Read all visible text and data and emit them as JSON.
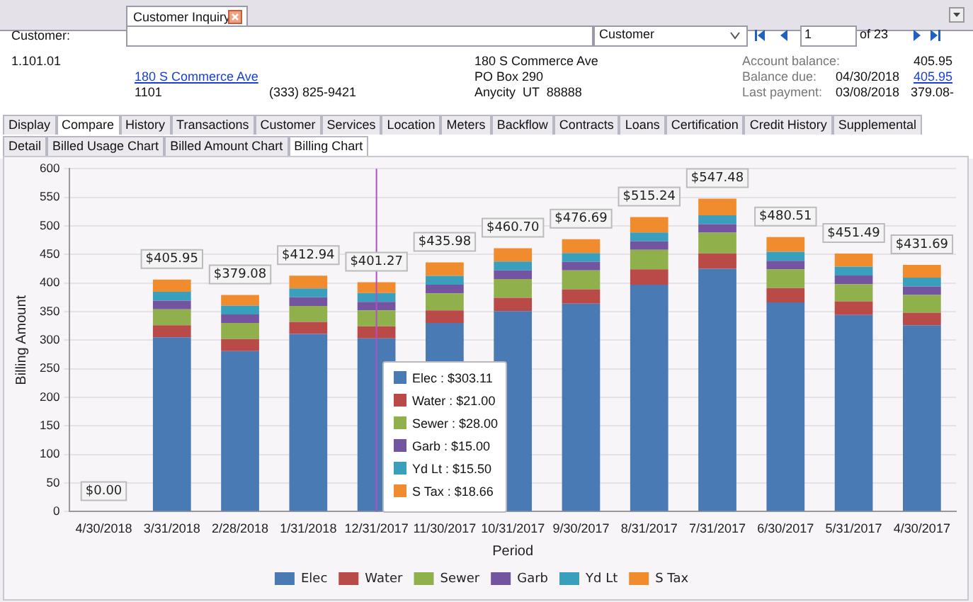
{
  "chart_data": {
    "type": "bar",
    "stacked": true,
    "xlabel": "Period",
    "ylabel": "Billing Amount",
    "categories": [
      "4/30/2018",
      "3/31/2018",
      "2/28/2018",
      "1/31/2018",
      "12/31/2017",
      "11/30/2017",
      "10/31/2017",
      "9/30/2017",
      "8/31/2017",
      "7/31/2017",
      "6/30/2017",
      "5/31/2017",
      "4/30/2017"
    ],
    "series": [
      {
        "name": "Elec",
        "color": "#4a7ab4",
        "values": [
          0,
          305,
          281,
          311,
          303.11,
          330,
          351,
          364,
          397,
          425,
          366,
          344,
          326
        ]
      },
      {
        "name": "Water",
        "color": "#b94a48",
        "values": [
          0,
          21,
          21,
          21,
          21.0,
          22,
          23,
          25,
          27,
          27,
          25,
          24,
          22
        ]
      },
      {
        "name": "Sewer",
        "color": "#8fb04a",
        "values": [
          0,
          28,
          28,
          28,
          28.0,
          30,
          33,
          33,
          34,
          36,
          33,
          30,
          31
        ]
      },
      {
        "name": "Garb",
        "color": "#7354a0",
        "values": [
          0,
          15,
          15,
          15,
          15.0,
          15,
          15,
          15,
          15,
          15,
          15,
          15,
          15
        ]
      },
      {
        "name": "Yd Lt",
        "color": "#3a9fbd",
        "values": [
          0,
          15.5,
          15.5,
          15.5,
          15.5,
          15.5,
          15.5,
          15.5,
          15.5,
          15.5,
          15.5,
          15.5,
          15.5
        ]
      },
      {
        "name": "S Tax",
        "color": "#f08c2e",
        "values": [
          0,
          21.45,
          18.58,
          22.44,
          18.66,
          23.48,
          23.2,
          24.19,
          26.74,
          28.98,
          26.01,
          22.99,
          22.19
        ]
      }
    ],
    "totals": [
      "$0.00",
      "$405.95",
      "$379.08",
      "$412.94",
      "$401.27",
      "$435.98",
      "$460.70",
      "$476.69",
      "$515.24",
      "$547.48",
      "$480.51",
      "$451.49",
      "$431.69"
    ],
    "ylim": [
      0,
      600
    ],
    "yticks": [
      0,
      50,
      100,
      150,
      200,
      250,
      300,
      350,
      400,
      450,
      500,
      550,
      600
    ],
    "grid": "y",
    "legend": "bottom",
    "ref_lines": [
      {
        "axis": "x",
        "value": "12/31/2017",
        "color": "#b050c8"
      }
    ],
    "annotations": [
      "Customer Inquiry",
      "Customer:",
      "Customer",
      "1",
      "of 23",
      "1.101.01",
      "180 S Commerce Ave",
      "1101",
      "(333) 825-9421",
      "180 S Commerce Ave",
      "PO Box 290",
      "Anycity  UT  88888",
      "Account balance:",
      "405.95",
      "Balance due:",
      "04/30/2018",
      "405.95",
      "Last payment:",
      "03/08/2018",
      "379.08-",
      "Display",
      "Compare",
      "History",
      "Transactions",
      "Customer",
      "Services",
      "Location",
      "Meters",
      "Backflow",
      "Contracts",
      "Loans",
      "Certification",
      "Credit History",
      "Supplemental",
      "Detail",
      "Billed Usage Chart",
      "Billed Amount Chart",
      "Billing Chart",
      "Elec : $303.11",
      "Water : $21.00",
      "Sewer : $28.00",
      "Garb : $15.00",
      "Yd Lt : $15.50",
      "S Tax : $18.66"
    ]
  }
}
